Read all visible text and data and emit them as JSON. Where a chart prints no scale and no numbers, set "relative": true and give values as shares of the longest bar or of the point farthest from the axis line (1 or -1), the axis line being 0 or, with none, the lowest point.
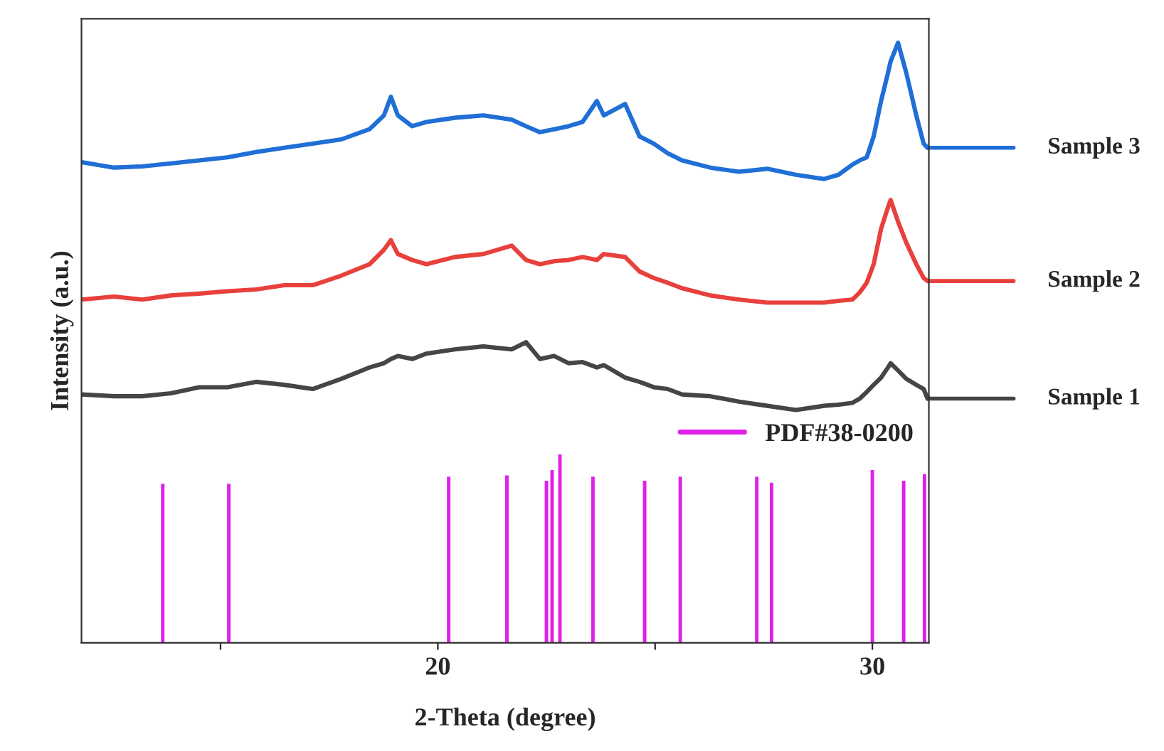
{
  "chart_data": {
    "type": "line",
    "xlabel": "2-Theta (degree)",
    "ylabel": "Intensity (a.u.)",
    "relative": true,
    "tick_labels": "x",
    "grid": false,
    "legend": "right",
    "line_style": "solid",
    "marker": "none",
    "xlim": [
      11.8,
      31.3
    ],
    "xticks": [
      {
        "value": 15,
        "label": null
      },
      20,
      {
        "value": 25,
        "label": null
      },
      30
    ],
    "x": [
      11.8,
      12.55,
      13.2,
      13.86,
      14.51,
      15.16,
      15.82,
      16.47,
      17.12,
      17.78,
      18.43,
      18.76,
      18.92,
      19.08,
      19.41,
      19.74,
      20.39,
      21.05,
      21.7,
      22.03,
      22.35,
      22.68,
      23.01,
      23.33,
      23.66,
      23.82,
      24.31,
      24.64,
      24.97,
      25.29,
      25.62,
      26.27,
      26.93,
      27.58,
      28.24,
      28.89,
      29.22,
      29.54,
      29.71,
      29.87,
      30.03,
      30.2,
      30.36,
      30.42,
      30.59,
      30.78,
      31.01,
      31.18,
      31.27
    ],
    "series": [
      {
        "name": "Sample 3",
        "color": "#1f6fd6",
        "values": [
          0.801,
          0.792,
          0.794,
          0.799,
          0.804,
          0.809,
          0.818,
          0.825,
          0.832,
          0.839,
          0.856,
          0.879,
          0.91,
          0.879,
          0.861,
          0.868,
          0.875,
          0.879,
          0.872,
          0.861,
          0.851,
          0.856,
          0.861,
          0.868,
          0.903,
          0.879,
          0.898,
          0.844,
          0.832,
          0.816,
          0.804,
          0.792,
          0.785,
          0.79,
          0.78,
          0.773,
          0.78,
          0.797,
          0.804,
          0.809,
          0.844,
          0.903,
          0.95,
          0.969,
          1.0,
          0.95,
          0.879,
          0.832,
          0.825
        ]
      },
      {
        "name": "Sample 2",
        "color": "#e8403c",
        "values": [
          0.572,
          0.577,
          0.572,
          0.579,
          0.582,
          0.586,
          0.589,
          0.596,
          0.596,
          0.612,
          0.631,
          0.655,
          0.671,
          0.648,
          0.638,
          0.631,
          0.643,
          0.648,
          0.662,
          0.638,
          0.631,
          0.636,
          0.638,
          0.643,
          0.638,
          0.648,
          0.643,
          0.619,
          0.608,
          0.6,
          0.591,
          0.579,
          0.572,
          0.567,
          0.567,
          0.567,
          0.57,
          0.572,
          0.584,
          0.6,
          0.631,
          0.69,
          0.726,
          0.738,
          0.702,
          0.667,
          0.631,
          0.608,
          0.603
        ]
      },
      {
        "name": "Sample 1",
        "color": "#454545",
        "values": [
          0.414,
          0.411,
          0.411,
          0.416,
          0.426,
          0.426,
          0.435,
          0.43,
          0.423,
          0.44,
          0.459,
          0.466,
          0.473,
          0.478,
          0.473,
          0.482,
          0.489,
          0.494,
          0.489,
          0.501,
          0.473,
          0.478,
          0.466,
          0.468,
          0.459,
          0.463,
          0.442,
          0.435,
          0.426,
          0.423,
          0.414,
          0.411,
          0.402,
          0.395,
          0.388,
          0.395,
          0.397,
          0.4,
          0.407,
          0.418,
          0.43,
          0.442,
          0.459,
          0.466,
          0.454,
          0.44,
          0.43,
          0.423,
          0.407
        ]
      },
      {
        "name": "PDF#38-0200",
        "type": "bar",
        "color": "#e020e8",
        "x": [
          13.67,
          15.19,
          20.25,
          21.59,
          22.5,
          22.63,
          22.81,
          23.57,
          24.76,
          25.58,
          27.34,
          27.68,
          30.0,
          30.72,
          31.2
        ],
        "values": [
          0.265,
          0.265,
          0.277,
          0.279,
          0.27,
          0.288,
          0.314,
          0.277,
          0.27,
          0.277,
          0.277,
          0.267,
          0.288,
          0.27,
          0.281
        ]
      }
    ]
  }
}
